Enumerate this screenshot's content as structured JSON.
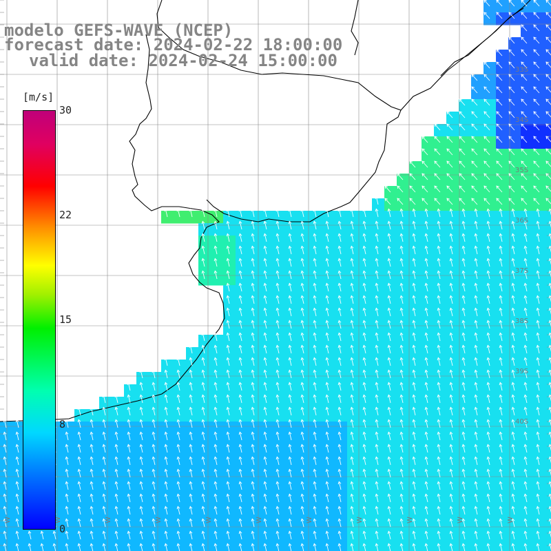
{
  "title": {
    "line1": "modelo GEFS-WAVE (NCEP)",
    "line2": "forecast date: 2024-02-22 18:00:00",
    "line3": "valid date: 2024-02-24 15:00:00"
  },
  "colorbar": {
    "units": "[m/s]",
    "ticks": [
      "30",
      "22",
      "15",
      "8",
      "0"
    ],
    "colors": [
      "#0000ff",
      "#00d8ff",
      "#00f000",
      "#ffff00",
      "#ff0000",
      "#c0007a"
    ]
  },
  "map": {
    "lat_labels": [
      "33S",
      "34S",
      "35S",
      "36S",
      "37S",
      "38S",
      "39S",
      "40S"
    ],
    "lon_labels": [
      "W",
      "W",
      "W",
      "W",
      "W",
      "W",
      "W",
      "W",
      "W",
      "W",
      "W"
    ]
  }
}
